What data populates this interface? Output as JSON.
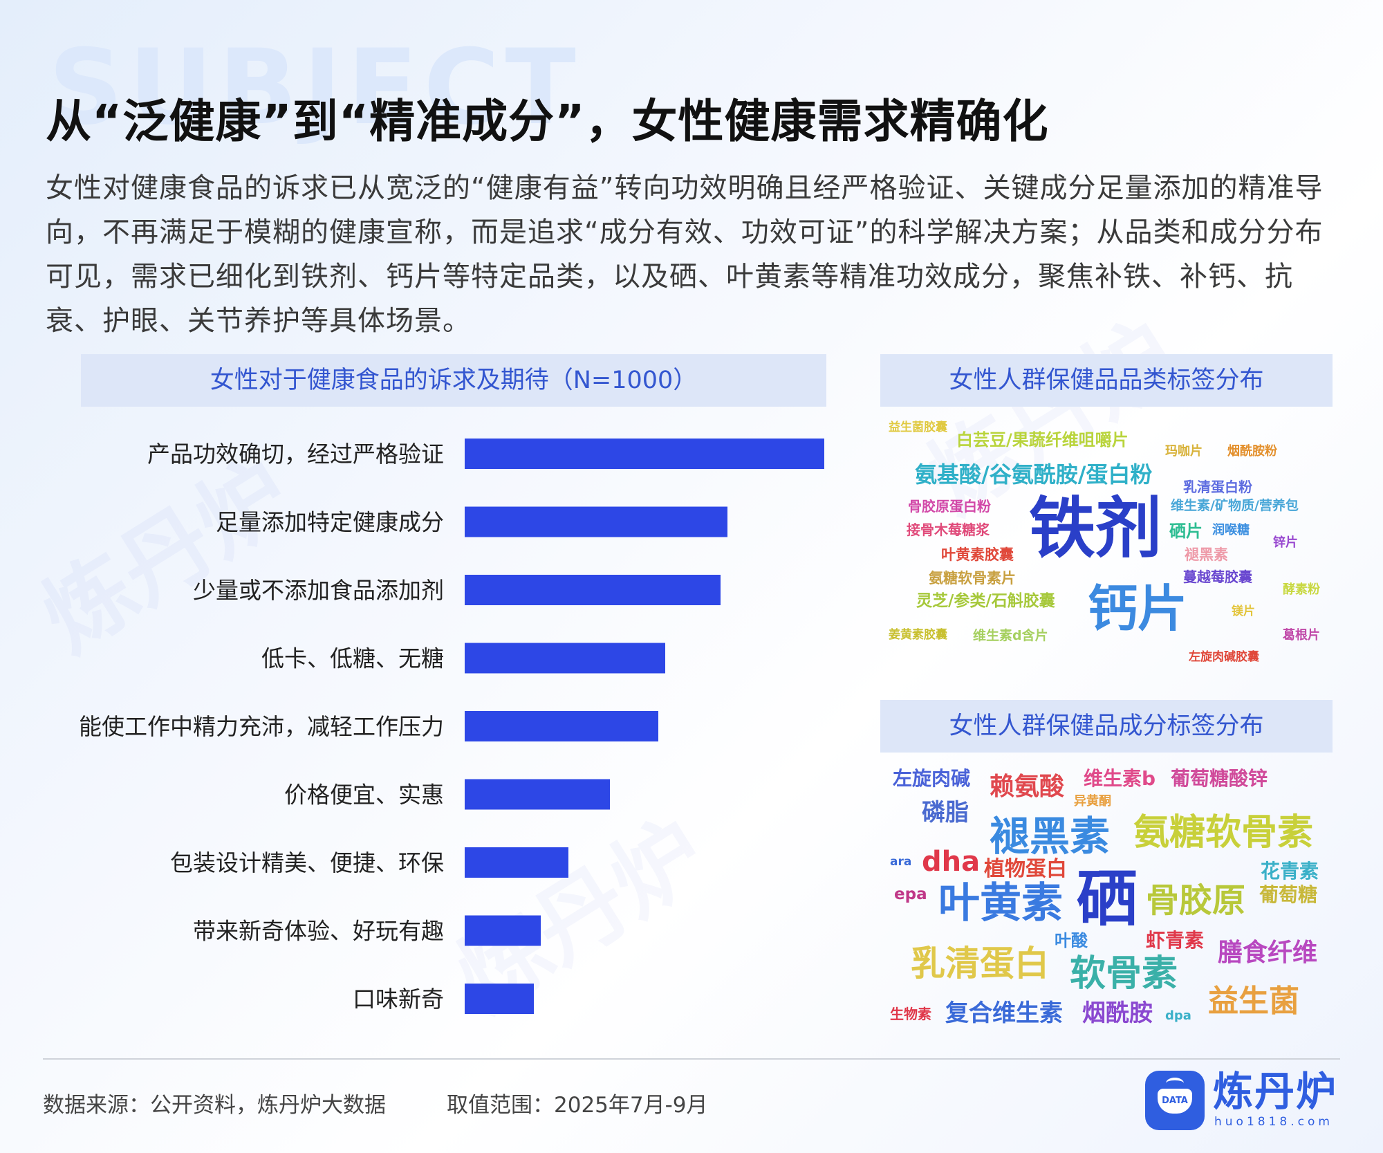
{
  "background_word": "SUBJECT",
  "watermark_text": "炼丹炉",
  "title": "从“泛健康”到“精准成分”，女性健康需求精确化",
  "intro": "女性对健康食品的诉求已从宽泛的“健康有益”转向功效明确且经严格验证、关键成分足量添加的精准导向，不再满足于模糊的健康宣称，而是追求“成分有效、功效可证”的科学解决方案；从品类和成分分布可见，需求已细化到铁剂、钙片等特定品类，以及硒、叶黄素等精准功效成分，聚焦补铁、补钙、抗衰、护眼、关节养护等具体场景。",
  "chart_data": [
    {
      "type": "bar",
      "orientation": "horizontal",
      "title": "女性对于健康食品的诉求及期待（N=1000）",
      "categories": [
        "产品功效确切，经过严格验证",
        "足量添加特定健康成分",
        "少量或不添加食品添加剂",
        "低卡、低糖、无糖",
        "能使工作中精力充沛，减轻工作压力",
        "价格便宜、实惠",
        "包装设计精美、便捷、环保",
        "带来新奇体验、好玩有趣",
        "口味新奇"
      ],
      "values": [
        52,
        38,
        37,
        29,
        28,
        21,
        15,
        11,
        10
      ],
      "value_labels_shown": false,
      "bar_color": "#2d47e6",
      "axis_visible": false,
      "grid": false
    }
  ],
  "wordclouds": {
    "category": {
      "title": "女性人群保健品品类标签分布",
      "words": [
        {
          "text": "益生菌胶囊",
          "color": "#e0c940"
        },
        {
          "text": "白芸豆/果蔬纤维咀嚼片",
          "color": "#b9d43c"
        },
        {
          "text": "玛咖片",
          "color": "#d8b23a"
        },
        {
          "text": "烟酰胺粉",
          "color": "#e3902d"
        },
        {
          "text": "氨基酸/谷氨酰胺/蛋白粉",
          "color": "#2fb0c8"
        },
        {
          "text": "乳清蛋白粉",
          "color": "#5d6ce0"
        },
        {
          "text": "骨胶原蛋白粉",
          "color": "#d248a8"
        },
        {
          "text": "维生素/矿物质/营养包",
          "color": "#4aa7d8"
        },
        {
          "text": "铁剂",
          "color": "#2a3fc8"
        },
        {
          "text": "接骨木莓糖浆",
          "color": "#e04a7a"
        },
        {
          "text": "硒片",
          "color": "#2dbd92"
        },
        {
          "text": "润喉糖",
          "color": "#3c8fe0"
        },
        {
          "text": "锌片",
          "color": "#9848d0"
        },
        {
          "text": "叶黄素胶囊",
          "color": "#e0483a"
        },
        {
          "text": "褪黑素",
          "color": "#ee9aa8"
        },
        {
          "text": "氨糖软骨素片",
          "color": "#c8a040"
        },
        {
          "text": "蔓越莓胶囊",
          "color": "#6a48d0"
        },
        {
          "text": "灵芝/参类/石斛胶囊",
          "color": "#a6c83a"
        },
        {
          "text": "钙片",
          "color": "#3c8ae0"
        },
        {
          "text": "酵素粉",
          "color": "#c8d840"
        },
        {
          "text": "镁片",
          "color": "#e3c43a"
        },
        {
          "text": "姜黄素胶囊",
          "color": "#c8c030"
        },
        {
          "text": "维生素d含片",
          "color": "#a6d060"
        },
        {
          "text": "葛根片",
          "color": "#c048a8"
        },
        {
          "text": "左旋肉碱胶囊",
          "color": "#e0483a"
        }
      ]
    },
    "ingredient": {
      "title": "女性人群保健品成分标签分布",
      "words": [
        {
          "text": "左旋肉碱",
          "color": "#4a62d8"
        },
        {
          "text": "赖氨酸",
          "color": "#e0484e"
        },
        {
          "text": "维生素b",
          "color": "#e04a8a"
        },
        {
          "text": "葡萄糖酸锌",
          "color": "#d04a9a"
        },
        {
          "text": "异黄酮",
          "color": "#e8a040"
        },
        {
          "text": "磷脂",
          "color": "#4a6ad0"
        },
        {
          "text": "褪黑素",
          "color": "#3a8ae0"
        },
        {
          "text": "氨糖软骨素",
          "color": "#c8d03a"
        },
        {
          "text": "ara",
          "color": "#3a6ad8"
        },
        {
          "text": "dha",
          "color": "#e0384a"
        },
        {
          "text": "植物蛋白",
          "color": "#e0483a"
        },
        {
          "text": "花青素",
          "color": "#3ab0c8"
        },
        {
          "text": "epa",
          "color": "#c03888"
        },
        {
          "text": "叶黄素",
          "color": "#3a7ae0"
        },
        {
          "text": "硒",
          "color": "#2a3fc8"
        },
        {
          "text": "骨胶原",
          "color": "#b8c83a"
        },
        {
          "text": "葡萄糖",
          "color": "#c8b83a"
        },
        {
          "text": "叶酸",
          "color": "#3a8ae0"
        },
        {
          "text": "虾青素",
          "color": "#e0384a"
        },
        {
          "text": "膳食纤维",
          "color": "#b848c0"
        },
        {
          "text": "乳清蛋白",
          "color": "#e0c84a"
        },
        {
          "text": "软骨素",
          "color": "#3ab0a8"
        },
        {
          "text": "益生菌",
          "color": "#e8a040"
        },
        {
          "text": "生物素",
          "color": "#e0384a"
        },
        {
          "text": "复合维生素",
          "color": "#3a6ad8"
        },
        {
          "text": "烟酰胺",
          "color": "#8a48d0"
        },
        {
          "text": "dpa",
          "color": "#3ab0c8"
        }
      ]
    }
  },
  "footer": {
    "source": "数据来源：公开资料，炼丹炉大数据",
    "range": "取值范围：2025年7月-9月"
  },
  "logo": {
    "badge": "DATA",
    "name": "炼丹炉",
    "url": "huo1818.com",
    "color": "#2f5ee0"
  }
}
